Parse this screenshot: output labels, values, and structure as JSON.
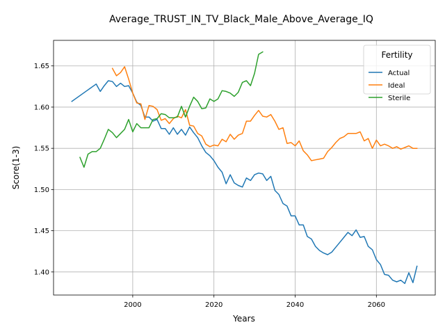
{
  "chart_data": {
    "type": "line",
    "title": "Average_TRUST_IN_TV_Black_Male_Above_Average_IQ",
    "xlabel": "Years",
    "ylabel": "Score(1-3)",
    "xlim": [
      1980.5,
      2074.5
    ],
    "ylim": [
      1.372,
      1.681
    ],
    "xticks": [
      2000,
      2020,
      2040,
      2060
    ],
    "yticks": [
      1.4,
      1.45,
      1.5,
      1.55,
      1.6,
      1.65
    ],
    "ytick_labels": [
      "1.40",
      "1.45",
      "1.50",
      "1.55",
      "1.60",
      "1.65"
    ],
    "grid": true,
    "legend": {
      "title": "Fertility",
      "position": "upper right"
    },
    "series": [
      {
        "name": "Actual",
        "color": "#1f77b4",
        "x": [
          1985,
          1991,
          1992,
          1993,
          1994,
          1995,
          1996,
          1997,
          1998,
          1999,
          2000,
          2001,
          2002,
          2003,
          2004,
          2005,
          2006,
          2007,
          2008,
          2009,
          2010,
          2011,
          2012,
          2013,
          2014,
          2015,
          2016,
          2017,
          2018,
          2019,
          2020,
          2021,
          2022,
          2023,
          2024,
          2025,
          2026,
          2027,
          2028,
          2029,
          2030,
          2031,
          2032,
          2033,
          2034,
          2035,
          2036,
          2037,
          2038,
          2039,
          2040,
          2041,
          2042,
          2043,
          2044,
          2045,
          2046,
          2047,
          2048,
          2049,
          2050,
          2051,
          2052,
          2053,
          2054,
          2055,
          2056,
          2057,
          2058,
          2059,
          2060,
          2061,
          2062,
          2063,
          2064,
          2065,
          2066,
          2067,
          2068,
          2069,
          2070
        ],
        "y": [
          1.607,
          1.628,
          1.619,
          1.626,
          1.632,
          1.631,
          1.625,
          1.629,
          1.625,
          1.626,
          1.617,
          1.606,
          1.602,
          1.588,
          1.588,
          1.583,
          1.585,
          1.574,
          1.574,
          1.567,
          1.575,
          1.567,
          1.573,
          1.566,
          1.576,
          1.569,
          1.563,
          1.553,
          1.545,
          1.541,
          1.535,
          1.527,
          1.521,
          1.507,
          1.518,
          1.508,
          1.505,
          1.503,
          1.514,
          1.511,
          1.518,
          1.52,
          1.519,
          1.511,
          1.516,
          1.499,
          1.494,
          1.483,
          1.48,
          1.468,
          1.468,
          1.457,
          1.457,
          1.443,
          1.44,
          1.431,
          1.426,
          1.423,
          1.421,
          1.424,
          1.43,
          1.436,
          1.442,
          1.448,
          1.444,
          1.451,
          1.442,
          1.443,
          1.431,
          1.427,
          1.415,
          1.409,
          1.397,
          1.396,
          1.39,
          1.388,
          1.39,
          1.386,
          1.399,
          1.387,
          1.407
        ]
      },
      {
        "name": "Ideal",
        "color": "#ff7f0e",
        "x": [
          1995,
          1996,
          1997,
          1998,
          1999,
          2000,
          2001,
          2002,
          2003,
          2004,
          2005,
          2006,
          2007,
          2008,
          2009,
          2010,
          2011,
          2012,
          2013,
          2014,
          2015,
          2016,
          2017,
          2018,
          2019,
          2020,
          2021,
          2022,
          2023,
          2024,
          2025,
          2026,
          2027,
          2028,
          2029,
          2030,
          2031,
          2032,
          2033,
          2034,
          2035,
          2036,
          2037,
          2038,
          2039,
          2040,
          2041,
          2042,
          2043,
          2044,
          2045,
          2046,
          2047,
          2048,
          2049,
          2050,
          2051,
          2052,
          2053,
          2054,
          2055,
          2056,
          2057,
          2058,
          2059,
          2060,
          2061,
          2062,
          2063,
          2064,
          2065,
          2066,
          2067,
          2068,
          2069,
          2070
        ],
        "y": [
          1.647,
          1.638,
          1.642,
          1.649,
          1.634,
          1.617,
          1.605,
          1.604,
          1.585,
          1.602,
          1.601,
          1.597,
          1.584,
          1.586,
          1.58,
          1.586,
          1.589,
          1.587,
          1.597,
          1.578,
          1.577,
          1.568,
          1.565,
          1.555,
          1.552,
          1.554,
          1.553,
          1.561,
          1.558,
          1.567,
          1.561,
          1.566,
          1.568,
          1.583,
          1.583,
          1.59,
          1.596,
          1.589,
          1.588,
          1.591,
          1.583,
          1.573,
          1.575,
          1.556,
          1.557,
          1.553,
          1.559,
          1.547,
          1.542,
          1.535,
          1.536,
          1.537,
          1.538,
          1.546,
          1.551,
          1.557,
          1.562,
          1.564,
          1.568,
          1.568,
          1.568,
          1.57,
          1.559,
          1.562,
          1.55,
          1.56,
          1.553,
          1.555,
          1.553,
          1.55,
          1.552,
          1.549,
          1.551,
          1.553,
          1.55,
          1.55
        ]
      },
      {
        "name": "Sterile",
        "color": "#2ca02c",
        "x": [
          1987,
          1988,
          1989,
          1990,
          1991,
          1992,
          1993,
          1994,
          1995,
          1996,
          1997,
          1998,
          1999,
          2000,
          2001,
          2002,
          2003,
          2004,
          2005,
          2006,
          2007,
          2008,
          2009,
          2010,
          2011,
          2012,
          2013,
          2014,
          2015,
          2016,
          2017,
          2018,
          2019,
          2020,
          2021,
          2022,
          2023,
          2024,
          2025,
          2026,
          2027,
          2028,
          2029,
          2030,
          2031,
          2032
        ],
        "y": [
          1.539,
          1.527,
          1.543,
          1.546,
          1.546,
          1.55,
          1.561,
          1.573,
          1.569,
          1.563,
          1.568,
          1.573,
          1.585,
          1.57,
          1.58,
          1.575,
          1.575,
          1.575,
          1.585,
          1.586,
          1.592,
          1.591,
          1.587,
          1.587,
          1.588,
          1.601,
          1.588,
          1.601,
          1.612,
          1.607,
          1.598,
          1.599,
          1.61,
          1.607,
          1.61,
          1.62,
          1.619,
          1.617,
          1.613,
          1.618,
          1.63,
          1.632,
          1.626,
          1.641,
          1.664,
          1.667
        ]
      }
    ]
  }
}
